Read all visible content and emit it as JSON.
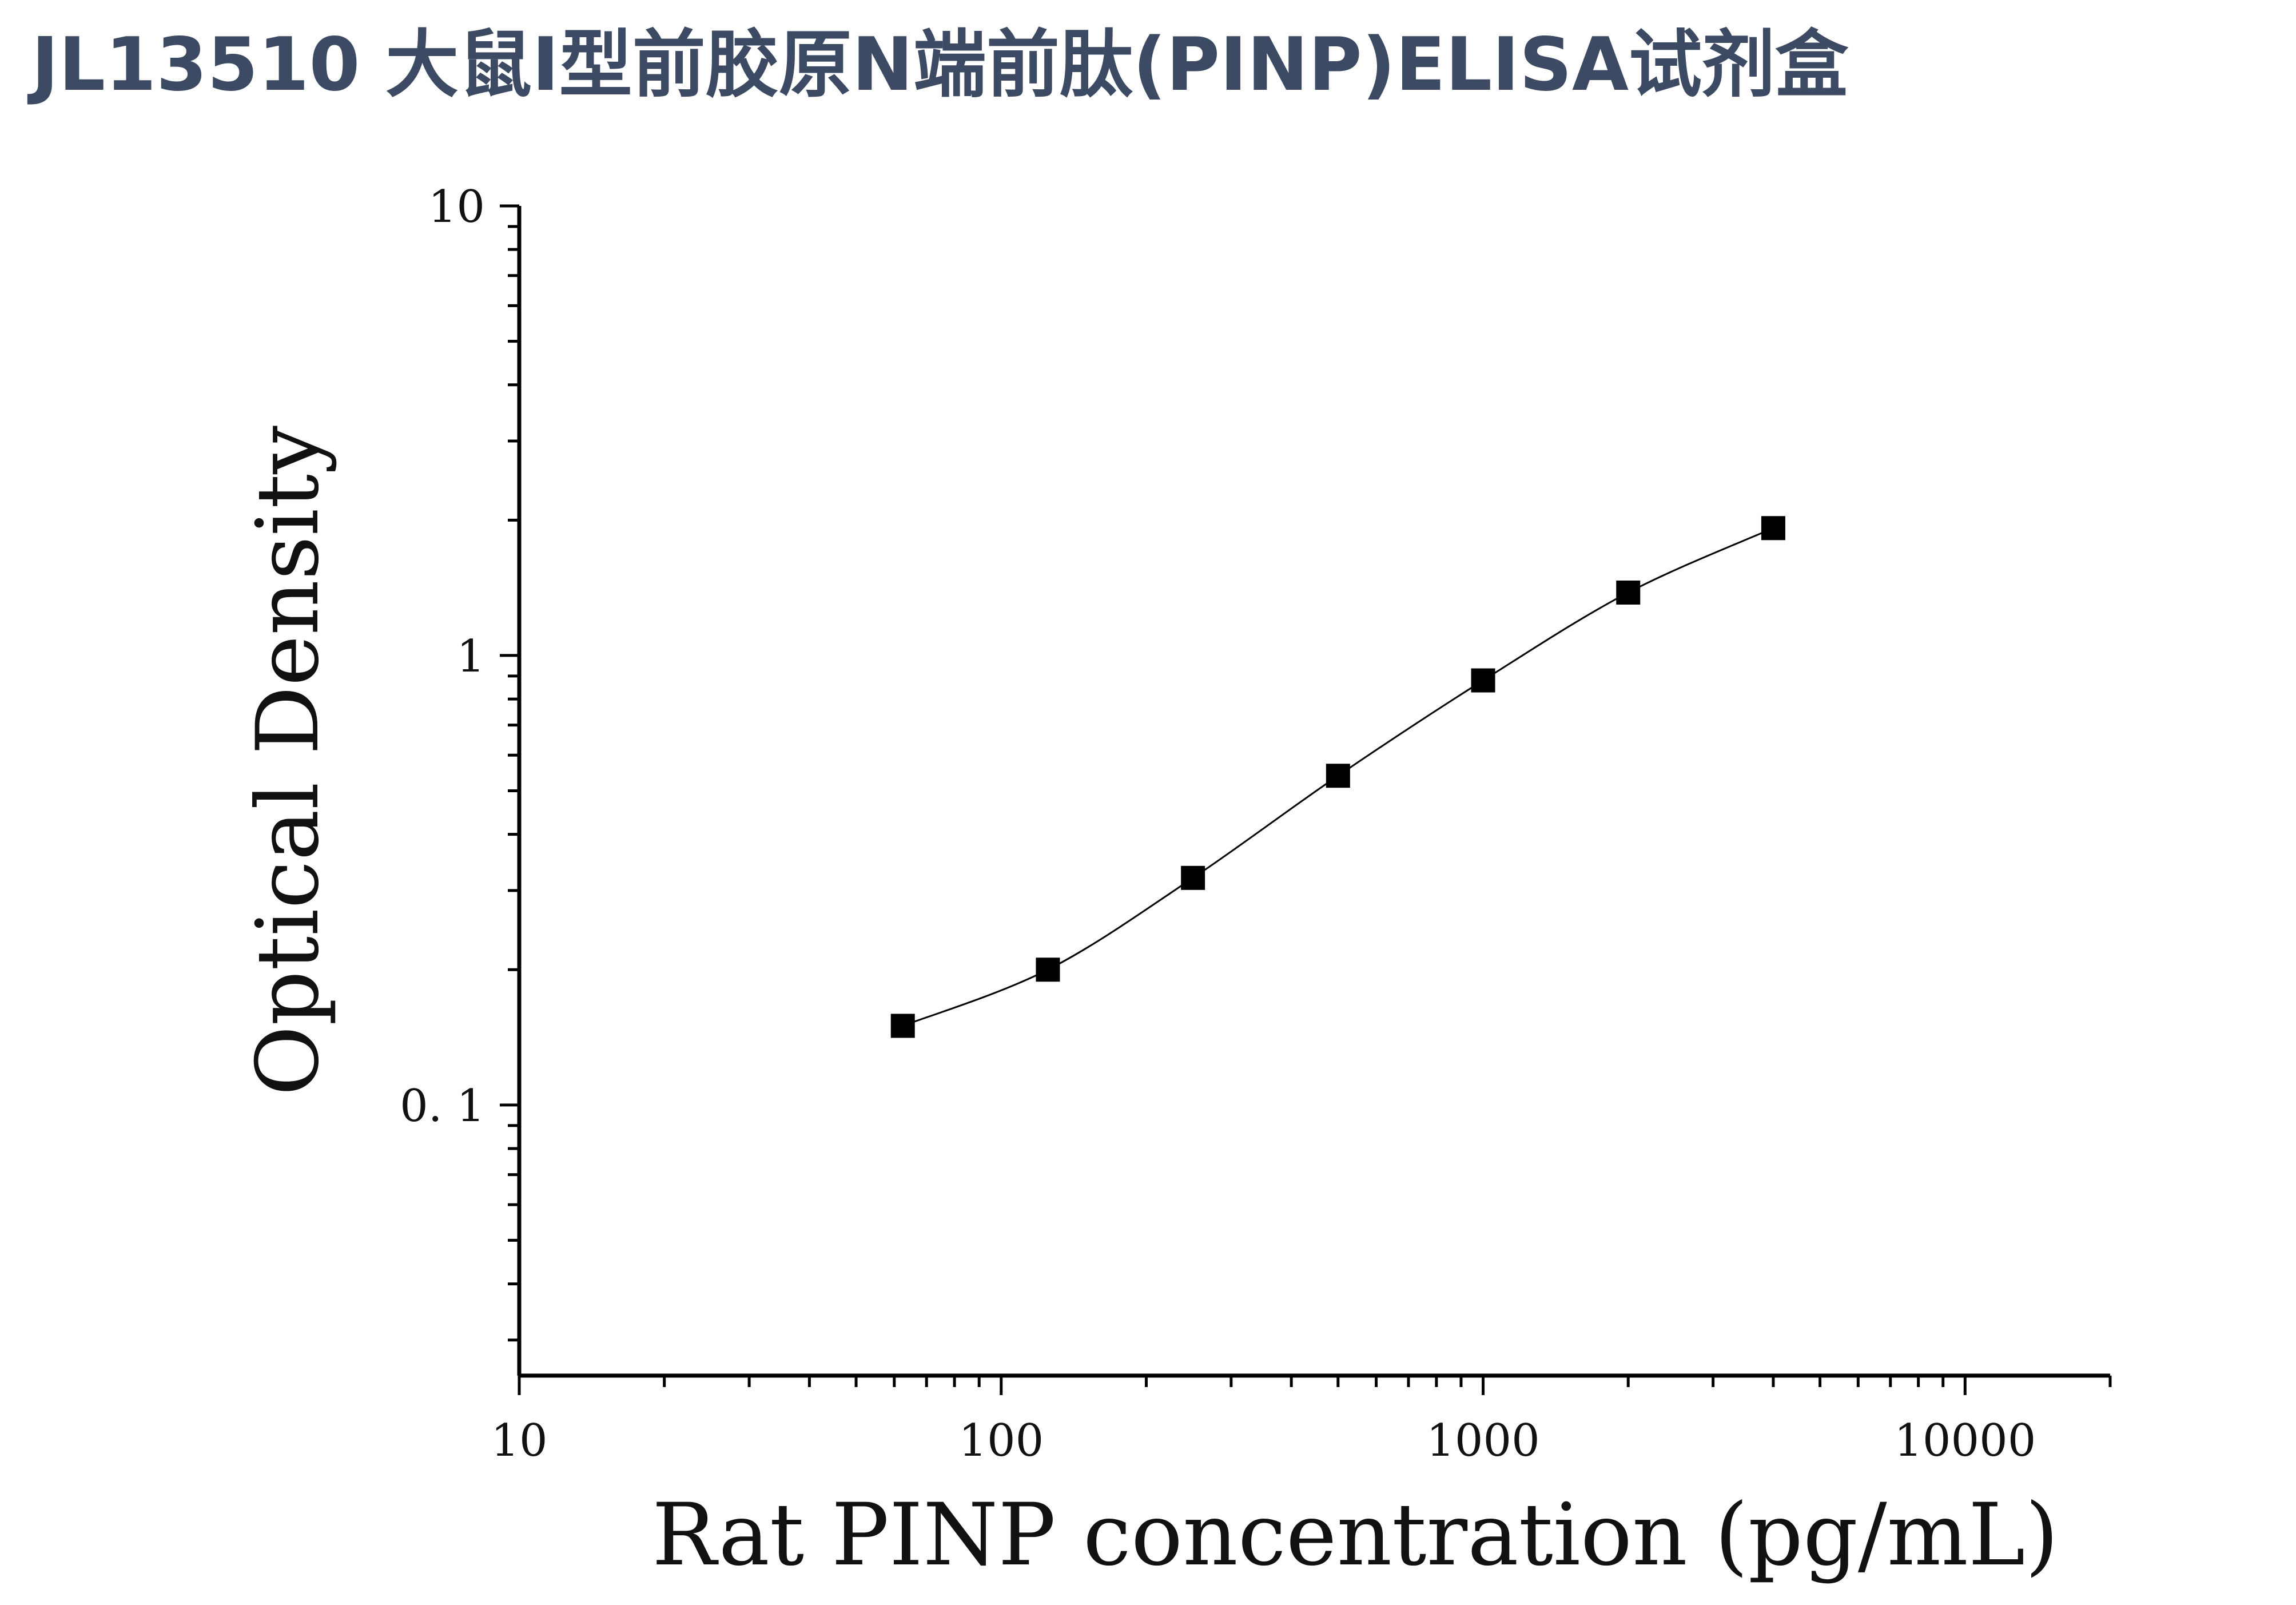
{
  "page": {
    "title": "JL13510 大鼠I型前胶原N端前肽(PINP)ELISA试剂盒"
  },
  "chart_data": {
    "type": "scatter",
    "xlabel": "Rat PINP concentration (pg/mL)",
    "ylabel": "Optical Density",
    "x_scale": "log",
    "y_scale": "log",
    "xlim": [
      10,
      20000
    ],
    "ylim": [
      0.025,
      10
    ],
    "x_ticks": [
      10,
      100,
      1000,
      10000
    ],
    "x_tick_labels": [
      "10",
      "100",
      "1000",
      "10000"
    ],
    "y_ticks": [
      0.1,
      1,
      10
    ],
    "y_tick_labels": [
      "0. 1",
      "1",
      "10"
    ],
    "grid": false,
    "legend": "none",
    "series": [
      {
        "marker": "square",
        "color": "#000000",
        "fit_curve": true,
        "points": [
          {
            "x": 62.5,
            "y": 0.15
          },
          {
            "x": 125,
            "y": 0.2
          },
          {
            "x": 250,
            "y": 0.32
          },
          {
            "x": 500,
            "y": 0.54
          },
          {
            "x": 1000,
            "y": 0.88
          },
          {
            "x": 2000,
            "y": 1.38
          },
          {
            "x": 4000,
            "y": 1.92
          }
        ]
      }
    ]
  }
}
